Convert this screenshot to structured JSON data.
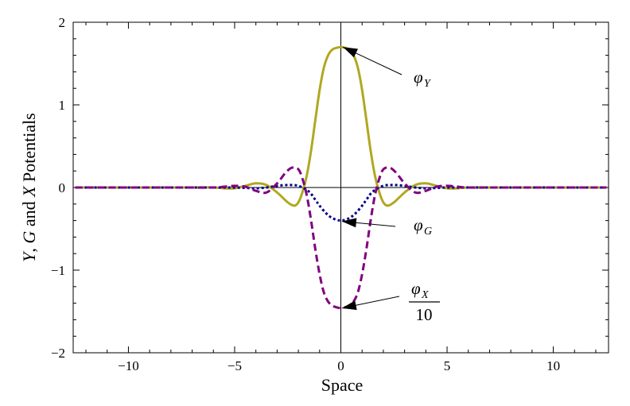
{
  "chart_data": {
    "type": "line",
    "title": "",
    "xlabel": "Space",
    "ylabel_parts": [
      "Y",
      ", ",
      "G",
      " and ",
      "X",
      " Potentials"
    ],
    "xlim": [
      -12.6,
      12.6
    ],
    "ylim": [
      -2,
      2
    ],
    "x_ticks": [
      -10,
      -5,
      0,
      5,
      10
    ],
    "x_tick_labels": [
      "−10",
      "−5",
      "0",
      "5",
      "10"
    ],
    "y_ticks": [
      -2,
      -1,
      0,
      1,
      2
    ],
    "y_tick_labels": [
      "−2",
      "−1",
      "0",
      "1",
      "2"
    ],
    "grid": false,
    "series": [
      {
        "id": "phi_Y",
        "color": "#b0a820",
        "dash": "solid",
        "x": [
          -12.5,
          -8,
          -6,
          -5.5,
          -5,
          -4.5,
          -4,
          -3.5,
          -3,
          -2.5,
          -2.2,
          -2,
          -1.8,
          -1.6,
          -1.4,
          -1.2,
          -1,
          -0.8,
          -0.6,
          -0.4,
          -0.2,
          0,
          0.2,
          0.4,
          0.6,
          0.8,
          1,
          1.2,
          1.4,
          1.6,
          1.8,
          2,
          2.2,
          2.5,
          3,
          3.5,
          4,
          4.5,
          5,
          5.5,
          6,
          8,
          12.5
        ],
        "y": [
          0,
          0,
          0,
          -0.01,
          -0.01,
          0.02,
          0.05,
          0.03,
          -0.06,
          -0.18,
          -0.22,
          -0.18,
          -0.05,
          0.15,
          0.45,
          0.82,
          1.18,
          1.45,
          1.6,
          1.67,
          1.69,
          1.7,
          1.69,
          1.67,
          1.6,
          1.45,
          1.18,
          0.82,
          0.45,
          0.15,
          -0.05,
          -0.18,
          -0.22,
          -0.18,
          -0.06,
          0.03,
          0.05,
          0.02,
          -0.01,
          -0.01,
          0,
          0,
          0
        ]
      },
      {
        "id": "phi_G",
        "color": "#00008b",
        "dash": "dotted",
        "x": [
          -12.5,
          -8,
          -6,
          -5,
          -4.5,
          -4,
          -3.5,
          -3,
          -2.5,
          -2,
          -1.5,
          -1.2,
          -1,
          -0.7,
          -0.4,
          0,
          0.4,
          0.7,
          1,
          1.2,
          1.5,
          2,
          2.5,
          3,
          3.5,
          4,
          4.5,
          5,
          6,
          8,
          12.5
        ],
        "y": [
          0,
          0,
          0,
          0,
          -0.005,
          -0.01,
          0,
          0.02,
          0.03,
          0.02,
          -0.05,
          -0.15,
          -0.22,
          -0.31,
          -0.37,
          -0.4,
          -0.37,
          -0.31,
          -0.22,
          -0.15,
          -0.05,
          0.02,
          0.03,
          0.02,
          0,
          -0.01,
          -0.005,
          0,
          0,
          0,
          0
        ]
      },
      {
        "id": "phi_X_over_10",
        "color": "#800080",
        "dash": "dashed",
        "x": [
          -12.5,
          -8,
          -6,
          -5.5,
          -5,
          -4.5,
          -4,
          -3.5,
          -3,
          -2.6,
          -2.3,
          -2,
          -1.8,
          -1.6,
          -1.4,
          -1.2,
          -1,
          -0.8,
          -0.6,
          -0.4,
          -0.2,
          0,
          0.2,
          0.4,
          0.6,
          0.8,
          1,
          1.2,
          1.4,
          1.6,
          1.8,
          2,
          2.3,
          2.6,
          3,
          3.5,
          4,
          4.5,
          5,
          5.5,
          6,
          8,
          12.5
        ],
        "y": [
          0,
          0,
          0,
          0.01,
          0.02,
          0.01,
          -0.04,
          -0.06,
          0.05,
          0.18,
          0.24,
          0.22,
          0.1,
          -0.1,
          -0.4,
          -0.75,
          -1.05,
          -1.27,
          -1.38,
          -1.43,
          -1.45,
          -1.46,
          -1.45,
          -1.43,
          -1.38,
          -1.27,
          -1.05,
          -0.75,
          -0.4,
          -0.1,
          0.1,
          0.22,
          0.24,
          0.18,
          0.05,
          -0.06,
          -0.04,
          0.01,
          0.02,
          0.01,
          0,
          0,
          0
        ]
      }
    ],
    "annotations": [
      {
        "id": "phi_Y",
        "symbol": "φ",
        "subscript": "Y",
        "point_to": [
          0.1,
          1.7
        ]
      },
      {
        "id": "phi_G",
        "symbol": "φ",
        "subscript": "G",
        "point_to": [
          0.05,
          -0.41
        ]
      },
      {
        "id": "phi_X",
        "symbol": "φ",
        "subscript": "X",
        "denominator": "10",
        "point_to": [
          0.05,
          -1.46
        ]
      }
    ]
  }
}
